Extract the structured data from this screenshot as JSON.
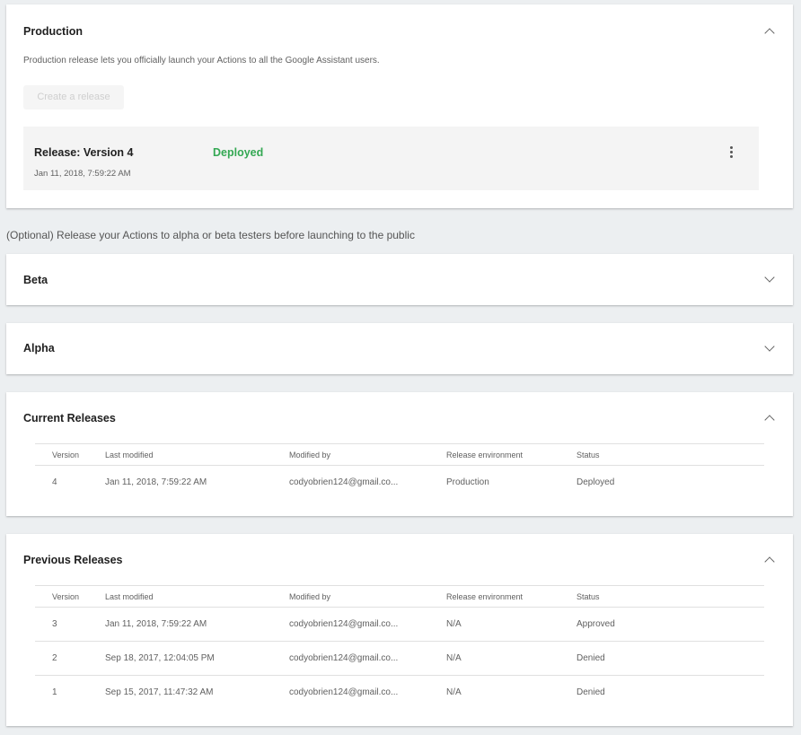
{
  "production": {
    "title": "Production",
    "description": "Production release lets you officially launch your Actions to all the Google Assistant users.",
    "create_button": "Create a release",
    "release": {
      "name": "Release: Version 4",
      "date": "Jan 11, 2018, 7:59:22 AM",
      "status": "Deployed",
      "status_color": "#34a853"
    }
  },
  "optional_text": "(Optional) Release your Actions to alpha or beta testers before launching to the public",
  "beta": {
    "title": "Beta"
  },
  "alpha": {
    "title": "Alpha"
  },
  "columns": [
    "Version",
    "Last modified",
    "Modified by",
    "Release environment",
    "Status"
  ],
  "current": {
    "title": "Current Releases",
    "rows": [
      [
        "4",
        "Jan 11, 2018, 7:59:22 AM",
        "codyobrien124@gmail.co...",
        "Production",
        "Deployed"
      ]
    ]
  },
  "previous": {
    "title": "Previous Releases",
    "rows": [
      [
        "3",
        "Jan 11, 2018, 7:59:22 AM",
        "codyobrien124@gmail.co...",
        "N/A",
        "Approved"
      ],
      [
        "2",
        "Sep 18, 2017, 12:04:05 PM",
        "codyobrien124@gmail.co...",
        "N/A",
        "Denied"
      ],
      [
        "1",
        "Sep 15, 2017, 11:47:32 AM",
        "codyobrien124@gmail.co...",
        "N/A",
        "Denied"
      ]
    ]
  }
}
